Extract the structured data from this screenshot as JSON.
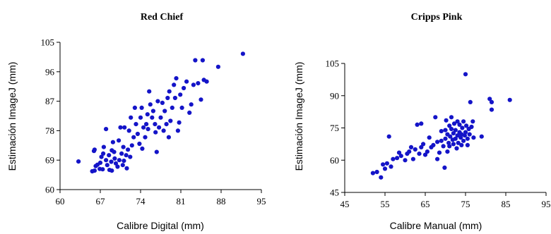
{
  "chart_data": [
    {
      "type": "scatter",
      "title": "Red Chief",
      "xlabel": "Calibre Digital (mm)",
      "ylabel": "Estimación ImageJ (mm)",
      "xlim": [
        60,
        95
      ],
      "ylim": [
        60,
        105
      ],
      "xticks": [
        "60",
        "67",
        "74",
        "81",
        "88",
        "95"
      ],
      "yticks": [
        "60",
        "69",
        "78",
        "87",
        "96",
        "105"
      ],
      "grid": false,
      "color": "#1414c8",
      "points": [
        [
          63.2,
          68.6
        ],
        [
          65.6,
          65.6
        ],
        [
          66.0,
          65.8
        ],
        [
          66.2,
          67.2
        ],
        [
          65.9,
          71.8
        ],
        [
          66.0,
          72.2
        ],
        [
          66.5,
          67.6
        ],
        [
          67.0,
          68.2
        ],
        [
          67.2,
          70.0
        ],
        [
          66.9,
          66.3
        ],
        [
          67.4,
          66.2
        ],
        [
          67.6,
          73.0
        ],
        [
          68.0,
          69.0
        ],
        [
          67.5,
          71.0
        ],
        [
          68.2,
          67.5
        ],
        [
          68.5,
          70.5
        ],
        [
          68.0,
          78.5
        ],
        [
          68.6,
          66.0
        ],
        [
          68.9,
          68.5
        ],
        [
          69.0,
          72.0
        ],
        [
          69.2,
          74.5
        ],
        [
          69.5,
          69.5
        ],
        [
          69.0,
          65.8
        ],
        [
          69.4,
          71.5
        ],
        [
          69.7,
          68.0
        ],
        [
          70.0,
          67.0
        ],
        [
          70.2,
          75.0
        ],
        [
          70.5,
          79.0
        ],
        [
          70.3,
          69.0
        ],
        [
          70.7,
          71.0
        ],
        [
          70.9,
          67.5
        ],
        [
          71.0,
          73.0
        ],
        [
          71.2,
          79.0
        ],
        [
          71.5,
          70.5
        ],
        [
          71.1,
          68.8
        ],
        [
          71.8,
          72.2
        ],
        [
          71.6,
          66.5
        ],
        [
          72.0,
          78.0
        ],
        [
          72.3,
          82.0
        ],
        [
          72.5,
          73.5
        ],
        [
          72.8,
          76.0
        ],
        [
          72.2,
          70.0
        ],
        [
          73.0,
          85.0
        ],
        [
          73.2,
          80.0
        ],
        [
          73.5,
          77.0
        ],
        [
          73.8,
          74.0
        ],
        [
          74.0,
          82.0
        ],
        [
          74.2,
          85.0
        ],
        [
          74.5,
          79.0
        ],
        [
          74.8,
          76.0
        ],
        [
          74.3,
          72.5
        ],
        [
          75.0,
          80.0
        ],
        [
          75.2,
          83.0
        ],
        [
          75.5,
          90.0
        ],
        [
          75.7,
          86.0
        ],
        [
          75.3,
          78.5
        ],
        [
          76.0,
          82.0
        ],
        [
          76.2,
          84.0
        ],
        [
          76.5,
          80.0
        ],
        [
          76.8,
          71.5
        ],
        [
          76.6,
          77.5
        ],
        [
          77.0,
          87.0
        ],
        [
          77.2,
          79.0
        ],
        [
          77.5,
          82.0
        ],
        [
          77.8,
          86.5
        ],
        [
          78.0,
          78.0
        ],
        [
          78.2,
          84.0
        ],
        [
          78.5,
          80.0
        ],
        [
          78.7,
          88.0
        ],
        [
          78.9,
          76.0
        ],
        [
          79.0,
          90.0
        ],
        [
          79.2,
          81.0
        ],
        [
          79.5,
          85.0
        ],
        [
          79.8,
          92.0
        ],
        [
          80.0,
          88.0
        ],
        [
          80.2,
          94.0
        ],
        [
          80.5,
          78.0
        ],
        [
          80.7,
          80.5
        ],
        [
          80.9,
          89.0
        ],
        [
          81.2,
          85.0
        ],
        [
          81.5,
          91.0
        ],
        [
          82.0,
          93.0
        ],
        [
          82.5,
          83.5
        ],
        [
          82.8,
          86.0
        ],
        [
          83.2,
          92.0
        ],
        [
          83.5,
          99.5
        ],
        [
          84.0,
          92.5
        ],
        [
          84.5,
          87.5
        ],
        [
          84.8,
          99.5
        ],
        [
          85.0,
          93.5
        ],
        [
          85.5,
          93.0
        ],
        [
          87.5,
          97.5
        ],
        [
          91.8,
          101.5
        ]
      ]
    },
    {
      "type": "scatter",
      "title": "Cripps Pink",
      "xlabel": "Calibre Manual (mm)",
      "ylabel": "Estimación ImageJ (mm)",
      "xlim": [
        45,
        95
      ],
      "ylim": [
        45,
        105
      ],
      "xticks": [
        "45",
        "55",
        "65",
        "75",
        "85",
        "95"
      ],
      "yticks": [
        "45",
        "60",
        "75",
        "90",
        "105"
      ],
      "grid": false,
      "color": "#1414c8",
      "points": [
        [
          52.0,
          54.0
        ],
        [
          53.0,
          54.5
        ],
        [
          54.0,
          52.0
        ],
        [
          54.5,
          58.0
        ],
        [
          55.0,
          56.0
        ],
        [
          55.5,
          58.5
        ],
        [
          56.0,
          71.0
        ],
        [
          56.5,
          57.0
        ],
        [
          57.0,
          60.5
        ],
        [
          58.0,
          61.0
        ],
        [
          58.5,
          63.5
        ],
        [
          59.0,
          62.0
        ],
        [
          60.0,
          60.0
        ],
        [
          60.5,
          63.0
        ],
        [
          61.0,
          64.0
        ],
        [
          61.5,
          66.0
        ],
        [
          62.0,
          60.5
        ],
        [
          62.5,
          65.0
        ],
        [
          63.0,
          76.5
        ],
        [
          63.5,
          63.0
        ],
        [
          64.0,
          77.0
        ],
        [
          64.0,
          66.0
        ],
        [
          64.5,
          67.5
        ],
        [
          65.0,
          62.5
        ],
        [
          65.5,
          64.0
        ],
        [
          66.0,
          70.5
        ],
        [
          66.5,
          66.0
        ],
        [
          67.0,
          67.0
        ],
        [
          67.5,
          80.0
        ],
        [
          68.0,
          60.5
        ],
        [
          68.0,
          68.5
        ],
        [
          68.5,
          63.5
        ],
        [
          69.0,
          69.0
        ],
        [
          69.0,
          73.5
        ],
        [
          69.5,
          66.5
        ],
        [
          69.8,
          56.5
        ],
        [
          70.0,
          74.0
        ],
        [
          70.0,
          70.0
        ],
        [
          70.2,
          78.5
        ],
        [
          70.5,
          64.0
        ],
        [
          70.5,
          72.0
        ],
        [
          70.8,
          68.0
        ],
        [
          71.0,
          76.0
        ],
        [
          71.0,
          66.5
        ],
        [
          71.2,
          71.0
        ],
        [
          71.5,
          74.5
        ],
        [
          71.5,
          80.0
        ],
        [
          71.8,
          69.5
        ],
        [
          72.0,
          72.5
        ],
        [
          72.0,
          67.5
        ],
        [
          72.2,
          77.0
        ],
        [
          72.5,
          70.0
        ],
        [
          72.5,
          74.0
        ],
        [
          72.8,
          65.5
        ],
        [
          73.0,
          71.5
        ],
        [
          73.0,
          78.0
        ],
        [
          73.2,
          68.0
        ],
        [
          73.5,
          73.0
        ],
        [
          73.5,
          76.5
        ],
        [
          73.8,
          70.5
        ],
        [
          74.0,
          72.0
        ],
        [
          74.0,
          67.0
        ],
        [
          74.2,
          75.0
        ],
        [
          74.5,
          69.0
        ],
        [
          74.5,
          78.0
        ],
        [
          74.8,
          71.5
        ],
        [
          75.0,
          73.0
        ],
        [
          75.0,
          100.0
        ],
        [
          75.2,
          76.0
        ],
        [
          75.5,
          70.0
        ],
        [
          75.5,
          67.0
        ],
        [
          75.8,
          74.5
        ],
        [
          76.0,
          72.0
        ],
        [
          76.2,
          87.0
        ],
        [
          76.5,
          75.5
        ],
        [
          76.8,
          78.0
        ],
        [
          77.0,
          70.5
        ],
        [
          79.0,
          71.0
        ],
        [
          81.0,
          88.5
        ],
        [
          81.5,
          87.0
        ],
        [
          81.5,
          83.5
        ],
        [
          86.0,
          88.0
        ]
      ]
    }
  ]
}
